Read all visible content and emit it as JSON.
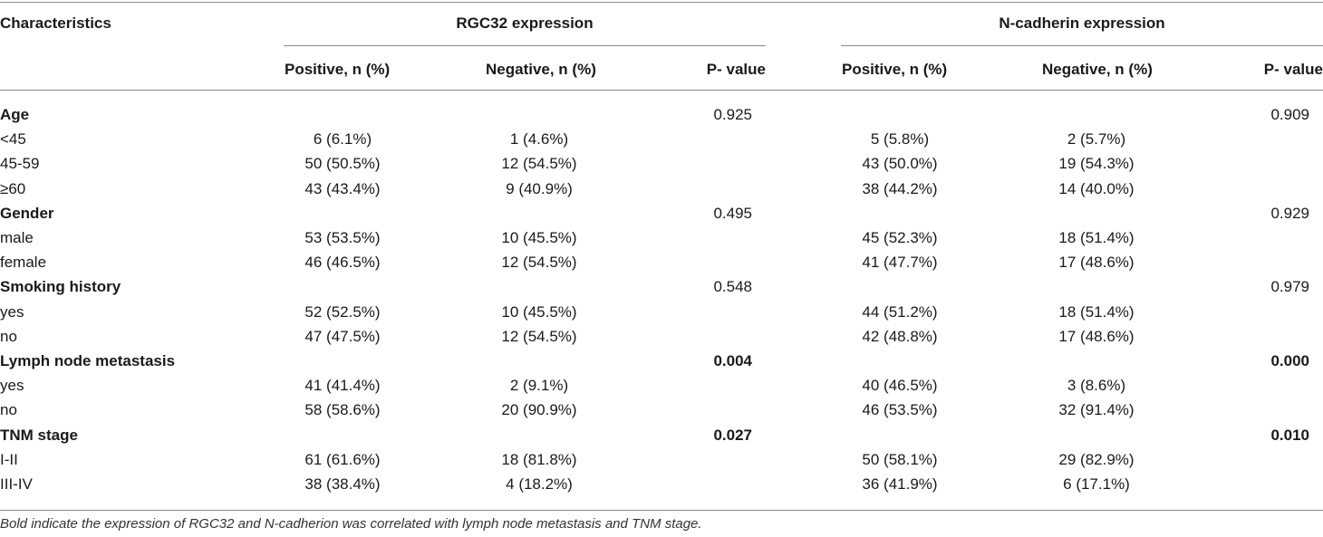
{
  "header": {
    "characteristics": "Characteristics",
    "group1": "RGC32 expression",
    "group2": "N-cadherin expression",
    "sub": {
      "positive": "Positive, n (%)",
      "negative": "Negative, n (%)",
      "pvalue": "P- value"
    }
  },
  "rows": [
    {
      "label": "Age",
      "bold": true,
      "rgc_pos": "",
      "rgc_neg": "",
      "rgc_p": "0.925",
      "rgc_p_bold": false,
      "nc_pos": "",
      "nc_neg": "",
      "nc_p": "0.909",
      "nc_p_bold": false
    },
    {
      "label": "<45",
      "bold": false,
      "rgc_pos": "6 (6.1%)",
      "rgc_neg": "1 (4.6%)",
      "rgc_p": "",
      "nc_pos": "5 (5.8%)",
      "nc_neg": "2 (5.7%)",
      "nc_p": ""
    },
    {
      "label": "45-59",
      "bold": false,
      "rgc_pos": "50 (50.5%)",
      "rgc_neg": "12 (54.5%)",
      "rgc_p": "",
      "nc_pos": "43 (50.0%)",
      "nc_neg": "19 (54.3%)",
      "nc_p": ""
    },
    {
      "label": "≥60",
      "bold": false,
      "rgc_pos": "43 (43.4%)",
      "rgc_neg": "9 (40.9%)",
      "rgc_p": "",
      "nc_pos": "38 (44.2%)",
      "nc_neg": "14 (40.0%)",
      "nc_p": ""
    },
    {
      "label": "Gender",
      "bold": true,
      "rgc_pos": "",
      "rgc_neg": "",
      "rgc_p": "0.495",
      "rgc_p_bold": false,
      "nc_pos": "",
      "nc_neg": "",
      "nc_p": "0.929",
      "nc_p_bold": false
    },
    {
      "label": "male",
      "bold": false,
      "rgc_pos": "53 (53.5%)",
      "rgc_neg": "10 (45.5%)",
      "rgc_p": "",
      "nc_pos": "45 (52.3%)",
      "nc_neg": "18 (51.4%)",
      "nc_p": ""
    },
    {
      "label": "female",
      "bold": false,
      "rgc_pos": "46 (46.5%)",
      "rgc_neg": "12 (54.5%)",
      "rgc_p": "",
      "nc_pos": "41 (47.7%)",
      "nc_neg": "17 (48.6%)",
      "nc_p": ""
    },
    {
      "label": "Smoking history",
      "bold": true,
      "rgc_pos": "",
      "rgc_neg": "",
      "rgc_p": "0.548",
      "rgc_p_bold": false,
      "nc_pos": "",
      "nc_neg": "",
      "nc_p": "0.979",
      "nc_p_bold": false
    },
    {
      "label": "yes",
      "bold": false,
      "rgc_pos": "52 (52.5%)",
      "rgc_neg": "10 (45.5%)",
      "rgc_p": "",
      "nc_pos": "44 (51.2%)",
      "nc_neg": "18 (51.4%)",
      "nc_p": ""
    },
    {
      "label": "no",
      "bold": false,
      "rgc_pos": "47 (47.5%)",
      "rgc_neg": "12 (54.5%)",
      "rgc_p": "",
      "nc_pos": "42 (48.8%)",
      "nc_neg": "17 (48.6%)",
      "nc_p": ""
    },
    {
      "label": "Lymph node metastasis",
      "bold": true,
      "rgc_pos": "",
      "rgc_neg": "",
      "rgc_p": "0.004",
      "rgc_p_bold": true,
      "nc_pos": "",
      "nc_neg": "",
      "nc_p": "0.000",
      "nc_p_bold": true
    },
    {
      "label": "yes",
      "bold": false,
      "rgc_pos": "41 (41.4%)",
      "rgc_neg": "2 (9.1%)",
      "rgc_p": "",
      "nc_pos": "40 (46.5%)",
      "nc_neg": "3 (8.6%)",
      "nc_p": ""
    },
    {
      "label": "no",
      "bold": false,
      "rgc_pos": "58 (58.6%)",
      "rgc_neg": "20 (90.9%)",
      "rgc_p": "",
      "nc_pos": "46 (53.5%)",
      "nc_neg": "32 (91.4%)",
      "nc_p": ""
    },
    {
      "label": "TNM stage",
      "bold": true,
      "rgc_pos": "",
      "rgc_neg": "",
      "rgc_p": "0.027",
      "rgc_p_bold": true,
      "nc_pos": "",
      "nc_neg": "",
      "nc_p": "0.010",
      "nc_p_bold": true
    },
    {
      "label": "I-II",
      "bold": false,
      "rgc_pos": "61 (61.6%)",
      "rgc_neg": "18 (81.8%)",
      "rgc_p": "",
      "nc_pos": "50 (58.1%)",
      "nc_neg": "29 (82.9%)",
      "nc_p": ""
    },
    {
      "label": "III-IV",
      "bold": false,
      "rgc_pos": "38 (38.4%)",
      "rgc_neg": "4 (18.2%)",
      "rgc_p": "",
      "nc_pos": "36 (41.9%)",
      "nc_neg": "6 (17.1%)",
      "nc_p": ""
    }
  ],
  "footnote": "Bold indicate the expression of RGC32 and N-cadherion was correlated with lymph node metastasis and TNM stage."
}
